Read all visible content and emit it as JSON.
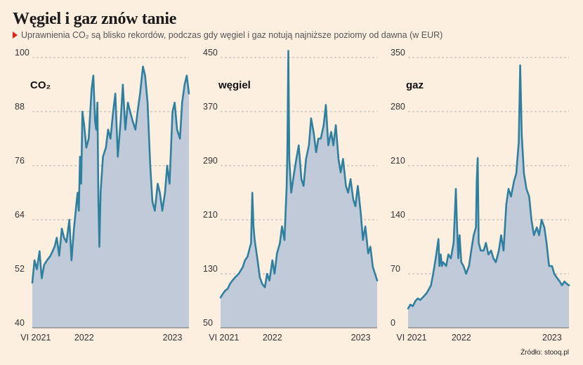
{
  "title": "Węgiel i gaz znów tanie",
  "subtitle": "Uprawnienia CO₂ są blisko rekordów, podczas gdy węgiel i gaz notują najniższe poziomy od dawna (w EUR)",
  "source": "Źródło: stooq.pl",
  "colors": {
    "line": "#2f7f9e",
    "area": "#c1cad8",
    "grid": "#9a9a9a",
    "background": "#fdefe0",
    "marker": "#d9261c"
  },
  "chart_data": [
    {
      "type": "area",
      "title": "CO₂",
      "ylim": [
        40,
        100
      ],
      "yticks": [
        "40",
        "52",
        "64",
        "76",
        "88",
        "100"
      ],
      "xlim": [
        "2021-06-01",
        "2023-03-10"
      ],
      "xticks": [
        {
          "label": "VI 2021",
          "x": "2021-06-15"
        },
        {
          "label": "2022",
          "x": "2022-01-01"
        },
        {
          "label": "2023",
          "x": "2023-01-01"
        }
      ],
      "grid": true,
      "series": [
        {
          "x": [
            "2021-06-01",
            "2021-06-10",
            "2021-06-20",
            "2021-07-01",
            "2021-07-10",
            "2021-07-20",
            "2021-08-01",
            "2021-08-15",
            "2021-09-01",
            "2021-09-10",
            "2021-09-20",
            "2021-10-01",
            "2021-10-10",
            "2021-10-20",
            "2021-11-01",
            "2021-11-10",
            "2021-11-20",
            "2021-12-01",
            "2021-12-05",
            "2021-12-10",
            "2021-12-15",
            "2021-12-20",
            "2021-12-25",
            "2022-01-01",
            "2022-01-10",
            "2022-01-20",
            "2022-02-01",
            "2022-02-08",
            "2022-02-15",
            "2022-02-20",
            "2022-02-25",
            "2022-03-01",
            "2022-03-05",
            "2022-03-10",
            "2022-03-20",
            "2022-04-01",
            "2022-04-10",
            "2022-04-20",
            "2022-05-01",
            "2022-05-10",
            "2022-05-20",
            "2022-06-01",
            "2022-06-10",
            "2022-06-20",
            "2022-07-01",
            "2022-07-10",
            "2022-07-20",
            "2022-08-01",
            "2022-08-10",
            "2022-08-20",
            "2022-09-01",
            "2022-09-10",
            "2022-09-20",
            "2022-10-01",
            "2022-10-10",
            "2022-10-20",
            "2022-11-01",
            "2022-11-10",
            "2022-11-20",
            "2022-12-01",
            "2022-12-10",
            "2022-12-20",
            "2023-01-01",
            "2023-01-10",
            "2023-01-20",
            "2023-02-01",
            "2023-02-10",
            "2023-02-20",
            "2023-03-01",
            "2023-03-10"
          ],
          "y": [
            50,
            55,
            53,
            57,
            51,
            54,
            55,
            56,
            58,
            60,
            56,
            62,
            60,
            59,
            64,
            55,
            62,
            68,
            70,
            66,
            78,
            72,
            88,
            85,
            80,
            82,
            93,
            96,
            86,
            84,
            90,
            68,
            58,
            70,
            78,
            80,
            84,
            82,
            88,
            92,
            78,
            86,
            94,
            84,
            90,
            88,
            86,
            84,
            88,
            92,
            98,
            96,
            90,
            76,
            68,
            66,
            72,
            70,
            66,
            70,
            76,
            72,
            88,
            90,
            84,
            82,
            90,
            94,
            96,
            92
          ]
        }
      ]
    },
    {
      "type": "area",
      "title": "węgiel",
      "ylim": [
        50,
        450
      ],
      "yticks": [
        "50",
        "130",
        "210",
        "290",
        "370",
        "450"
      ],
      "xlim": [
        "2021-06-01",
        "2023-03-10"
      ],
      "xticks": [
        {
          "label": "VI 2021",
          "x": "2021-06-15"
        },
        {
          "label": "2022",
          "x": "2022-01-01"
        },
        {
          "label": "2023",
          "x": "2023-01-01"
        }
      ],
      "grid": true,
      "series": [
        {
          "x": [
            "2021-06-01",
            "2021-06-10",
            "2021-06-20",
            "2021-07-01",
            "2021-07-10",
            "2021-07-20",
            "2021-08-01",
            "2021-08-15",
            "2021-09-01",
            "2021-09-10",
            "2021-09-20",
            "2021-10-01",
            "2021-10-05",
            "2021-10-10",
            "2021-10-15",
            "2021-10-20",
            "2021-11-01",
            "2021-11-10",
            "2021-11-20",
            "2021-12-01",
            "2021-12-10",
            "2021-12-20",
            "2022-01-01",
            "2022-01-10",
            "2022-01-20",
            "2022-02-01",
            "2022-02-10",
            "2022-02-20",
            "2022-03-01",
            "2022-03-04",
            "2022-03-08",
            "2022-03-12",
            "2022-03-20",
            "2022-04-01",
            "2022-04-10",
            "2022-04-20",
            "2022-05-01",
            "2022-05-10",
            "2022-05-20",
            "2022-06-01",
            "2022-06-10",
            "2022-06-20",
            "2022-07-01",
            "2022-07-10",
            "2022-07-20",
            "2022-08-01",
            "2022-08-10",
            "2022-08-20",
            "2022-09-01",
            "2022-09-10",
            "2022-09-20",
            "2022-10-01",
            "2022-10-10",
            "2022-10-20",
            "2022-11-01",
            "2022-11-10",
            "2022-11-20",
            "2022-12-01",
            "2022-12-10",
            "2022-12-20",
            "2023-01-01",
            "2023-01-10",
            "2023-01-20",
            "2023-02-01",
            "2023-02-10",
            "2023-02-20",
            "2023-03-01",
            "2023-03-10"
          ],
          "y": [
            95,
            100,
            105,
            108,
            115,
            120,
            125,
            130,
            140,
            150,
            155,
            170,
            175,
            250,
            200,
            180,
            150,
            125,
            115,
            110,
            130,
            120,
            150,
            130,
            160,
            175,
            200,
            180,
            260,
            310,
            460,
            300,
            250,
            280,
            300,
            320,
            270,
            260,
            300,
            320,
            360,
            340,
            310,
            330,
            330,
            350,
            380,
            320,
            340,
            320,
            350,
            300,
            280,
            300,
            260,
            250,
            270,
            240,
            230,
            260,
            220,
            180,
            200,
            160,
            170,
            140,
            130,
            120
          ]
        }
      ]
    },
    {
      "type": "area",
      "title": "gaz",
      "ylim": [
        0,
        350
      ],
      "yticks": [
        "0",
        "70",
        "140",
        "210",
        "280",
        "350"
      ],
      "xlim": [
        "2021-06-01",
        "2023-03-10"
      ],
      "xticks": [
        {
          "label": "VI 2021",
          "x": "2021-06-15"
        },
        {
          "label": "2022",
          "x": "2022-01-01"
        },
        {
          "label": "2023",
          "x": "2023-01-01"
        }
      ],
      "grid": true,
      "series": [
        {
          "x": [
            "2021-06-01",
            "2021-06-10",
            "2021-06-20",
            "2021-07-01",
            "2021-07-10",
            "2021-07-20",
            "2021-08-01",
            "2021-08-15",
            "2021-09-01",
            "2021-09-10",
            "2021-09-20",
            "2021-10-01",
            "2021-10-05",
            "2021-10-10",
            "2021-10-15",
            "2021-10-20",
            "2021-11-01",
            "2021-11-10",
            "2021-11-20",
            "2021-12-01",
            "2021-12-10",
            "2021-12-15",
            "2021-12-20",
            "2021-12-25",
            "2022-01-01",
            "2022-01-10",
            "2022-01-20",
            "2022-02-01",
            "2022-02-10",
            "2022-02-20",
            "2022-03-01",
            "2022-03-04",
            "2022-03-08",
            "2022-03-12",
            "2022-03-20",
            "2022-04-01",
            "2022-04-10",
            "2022-04-20",
            "2022-05-01",
            "2022-05-10",
            "2022-05-20",
            "2022-06-01",
            "2022-06-10",
            "2022-06-20",
            "2022-07-01",
            "2022-07-10",
            "2022-07-20",
            "2022-08-01",
            "2022-08-10",
            "2022-08-20",
            "2022-08-26",
            "2022-09-01",
            "2022-09-10",
            "2022-09-20",
            "2022-10-01",
            "2022-10-10",
            "2022-10-20",
            "2022-11-01",
            "2022-11-10",
            "2022-11-20",
            "2022-12-01",
            "2022-12-10",
            "2022-12-20",
            "2023-01-01",
            "2023-01-10",
            "2023-01-20",
            "2023-02-01",
            "2023-02-10",
            "2023-02-20",
            "2023-03-01",
            "2023-03-10"
          ],
          "y": [
            25,
            30,
            28,
            35,
            38,
            36,
            40,
            45,
            55,
            70,
            90,
            115,
            80,
            95,
            80,
            85,
            80,
            95,
            90,
            110,
            180,
            130,
            90,
            120,
            85,
            80,
            70,
            80,
            100,
            120,
            130,
            190,
            220,
            110,
            100,
            100,
            110,
            95,
            100,
            90,
            85,
            100,
            120,
            100,
            160,
            180,
            170,
            190,
            200,
            240,
            340,
            250,
            200,
            180,
            170,
            140,
            120,
            130,
            120,
            140,
            130,
            110,
            80,
            80,
            70,
            65,
            60,
            55,
            60,
            57,
            55
          ]
        }
      ]
    }
  ]
}
